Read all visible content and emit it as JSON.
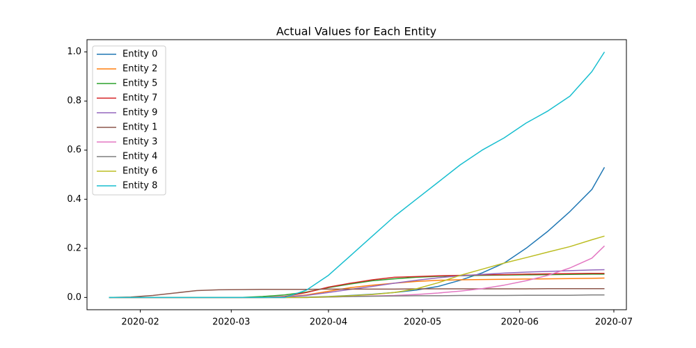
{
  "chart_data": {
    "type": "line",
    "title": "Actual Values for Each Entity",
    "x": [
      "2020-01-22",
      "2020-01-29",
      "2020-02-05",
      "2020-02-12",
      "2020-02-19",
      "2020-02-26",
      "2020-03-04",
      "2020-03-11",
      "2020-03-18",
      "2020-03-25",
      "2020-04-01",
      "2020-04-08",
      "2020-04-15",
      "2020-04-22",
      "2020-04-29",
      "2020-05-06",
      "2020-05-13",
      "2020-05-20",
      "2020-05-27",
      "2020-06-03",
      "2020-06-10",
      "2020-06-17",
      "2020-06-24",
      "2020-06-28"
    ],
    "series": [
      {
        "name": "Entity 0",
        "color": "#1f77b4",
        "values": [
          0,
          0,
          0,
          0,
          0,
          0,
          0,
          0,
          0,
          0.001,
          0.004,
          0.008,
          0.013,
          0.02,
          0.03,
          0.045,
          0.07,
          0.1,
          0.14,
          0.2,
          0.27,
          0.35,
          0.44,
          0.53
        ]
      },
      {
        "name": "Entity 2",
        "color": "#ff7f0e",
        "values": [
          0,
          0,
          0,
          0,
          0,
          0,
          0,
          0,
          0.002,
          0.01,
          0.025,
          0.04,
          0.05,
          0.058,
          0.065,
          0.07,
          0.072,
          0.073,
          0.074,
          0.075,
          0.076,
          0.077,
          0.078,
          0.079
        ]
      },
      {
        "name": "Entity 5",
        "color": "#2ca02c",
        "values": [
          0,
          0,
          0,
          0,
          0,
          0,
          0,
          0.004,
          0.01,
          0.022,
          0.04,
          0.055,
          0.068,
          0.076,
          0.082,
          0.086,
          0.088,
          0.09,
          0.091,
          0.092,
          0.093,
          0.094,
          0.095,
          0.095
        ]
      },
      {
        "name": "Entity 7",
        "color": "#d62728",
        "values": [
          0,
          0,
          0,
          0,
          0,
          0,
          0,
          0,
          0.004,
          0.02,
          0.042,
          0.058,
          0.072,
          0.082,
          0.085,
          0.088,
          0.09,
          0.092,
          0.093,
          0.095,
          0.096,
          0.097,
          0.098,
          0.098
        ]
      },
      {
        "name": "Entity 9",
        "color": "#9467bd",
        "values": [
          0,
          0,
          0,
          0,
          0,
          0,
          0,
          0,
          0.002,
          0.008,
          0.02,
          0.033,
          0.045,
          0.058,
          0.07,
          0.08,
          0.088,
          0.094,
          0.099,
          0.103,
          0.106,
          0.109,
          0.112,
          0.113
        ]
      },
      {
        "name": "Entity 1",
        "color": "#8c564b",
        "values": [
          0,
          0.002,
          0.008,
          0.018,
          0.028,
          0.031,
          0.032,
          0.033,
          0.033,
          0.033,
          0.034,
          0.034,
          0.034,
          0.034,
          0.035,
          0.035,
          0.035,
          0.035,
          0.035,
          0.035,
          0.036,
          0.036,
          0.036,
          0.036
        ]
      },
      {
        "name": "Entity 3",
        "color": "#e377c2",
        "values": [
          0,
          0,
          0,
          0,
          0,
          0,
          0,
          0,
          0,
          0,
          0.002,
          0.004,
          0.006,
          0.008,
          0.012,
          0.018,
          0.026,
          0.036,
          0.05,
          0.068,
          0.09,
          0.12,
          0.16,
          0.21
        ]
      },
      {
        "name": "Entity 4",
        "color": "#7f7f7f",
        "values": [
          0,
          0,
          0,
          0,
          0,
          0,
          0,
          0,
          0,
          0,
          0.002,
          0.004,
          0.005,
          0.006,
          0.007,
          0.007,
          0.008,
          0.008,
          0.008,
          0.009,
          0.009,
          0.009,
          0.01,
          0.01
        ]
      },
      {
        "name": "Entity 6",
        "color": "#bcbd22",
        "values": [
          0,
          0,
          0,
          0,
          0,
          0,
          0,
          0,
          0,
          0,
          0.003,
          0.007,
          0.012,
          0.02,
          0.035,
          0.06,
          0.09,
          0.115,
          0.14,
          0.162,
          0.185,
          0.207,
          0.235,
          0.25
        ]
      },
      {
        "name": "Entity 8",
        "color": "#17becf",
        "values": [
          0,
          0,
          0,
          0,
          0,
          0,
          0,
          0,
          0,
          0.03,
          0.09,
          0.17,
          0.25,
          0.33,
          0.4,
          0.47,
          0.54,
          0.6,
          0.65,
          0.71,
          0.76,
          0.82,
          0.92,
          1.0
        ]
      }
    ],
    "xlim": [
      "2020-01-15",
      "2020-07-05"
    ],
    "xticks": [
      {
        "value": "2020-02-01",
        "label": "2020-02"
      },
      {
        "value": "2020-03-01",
        "label": "2020-03"
      },
      {
        "value": "2020-04-01",
        "label": "2020-04"
      },
      {
        "value": "2020-05-01",
        "label": "2020-05"
      },
      {
        "value": "2020-06-01",
        "label": "2020-06"
      },
      {
        "value": "2020-07-01",
        "label": "2020-07"
      }
    ],
    "ylim": [
      -0.05,
      1.05
    ],
    "yticks": [
      {
        "value": 0,
        "label": "0.0"
      },
      0.2,
      0.4,
      0.6,
      0.8,
      {
        "value": 1,
        "label": "1.0"
      }
    ],
    "legend": "upper left"
  }
}
